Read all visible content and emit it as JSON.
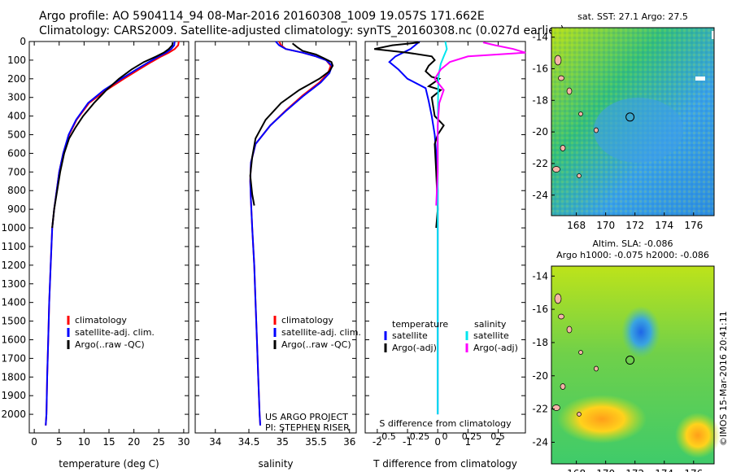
{
  "header": {
    "line1": "Argo profile: AO 5904114_94 08-Mar-2016 20160308_1009 19.057S 171.662E",
    "line2": "Climatology: CARS2009. Satellite-adjusted climatology: synTS_20160308.nc (0.027d earlier)"
  },
  "colors": {
    "climatology": "#ff0000",
    "satellite": "#0000ff",
    "argo": "#000000",
    "sal_sat": "#00e5ee",
    "sal_argo": "#ff00ff"
  },
  "chart_data": [
    {
      "type": "line",
      "id": "temperature",
      "xlabel": "temperature (deg C)",
      "xlim": [
        -1,
        31
      ],
      "ylim": [
        2100,
        0
      ],
      "xticks": [
        "0",
        "5",
        "10",
        "15",
        "20",
        "25",
        "30"
      ],
      "yticks": [
        "0",
        "100",
        "200",
        "300",
        "400",
        "500",
        "600",
        "700",
        "800",
        "900",
        "1000",
        "1100",
        "1200",
        "1300",
        "1400",
        "1500",
        "1600",
        "1700",
        "1800",
        "1900",
        "2000"
      ],
      "legend": [
        "climatology",
        "satellite-adj. clim.",
        "Argo(..raw -QC)"
      ],
      "series": [
        {
          "name": "climatology",
          "x": [
            29.0,
            28.9,
            28.2,
            27.0,
            25.5,
            23.5,
            21.0,
            18.0,
            14.5,
            11.0,
            8.5,
            7.0,
            5.8,
            5.0,
            4.5,
            4.0,
            3.6,
            3.3,
            3.0,
            2.8,
            2.6,
            2.45,
            2.3
          ],
          "y": [
            0,
            20,
            40,
            60,
            80,
            110,
            150,
            200,
            260,
            330,
            420,
            500,
            600,
            700,
            800,
            900,
            1000,
            1200,
            1400,
            1600,
            1800,
            2000,
            2060
          ]
        },
        {
          "name": "satellite-adj. clim.",
          "x": [
            28.2,
            28.1,
            27.5,
            26.5,
            25.0,
            23.0,
            20.5,
            17.5,
            14.0,
            10.8,
            8.4,
            6.9,
            5.8,
            5.0,
            4.5,
            4.0,
            3.6,
            3.3,
            3.0,
            2.8,
            2.6,
            2.45,
            2.3
          ],
          "y": [
            0,
            20,
            40,
            60,
            80,
            110,
            150,
            200,
            260,
            330,
            420,
            500,
            600,
            700,
            800,
            900,
            1000,
            1200,
            1400,
            1600,
            1800,
            2000,
            2060
          ]
        },
        {
          "name": "Argo(..raw -QC)",
          "x": [
            27.8,
            27.7,
            27.0,
            26.0,
            24.5,
            22.0,
            19.5,
            17.0,
            14.5,
            12.0,
            9.8,
            8.3,
            7.0,
            6.0,
            5.2,
            4.6,
            4.0,
            3.6
          ],
          "y": [
            5,
            20,
            40,
            60,
            80,
            110,
            150,
            200,
            260,
            330,
            400,
            460,
            520,
            600,
            700,
            800,
            900,
            1000
          ]
        }
      ]
    },
    {
      "type": "line",
      "id": "salinity",
      "xlabel": "salinity",
      "xlim": [
        33.7,
        36.1
      ],
      "ylim": [
        2100,
        0
      ],
      "xticks": [
        "34",
        "34.5",
        "35",
        "35.5",
        "36"
      ],
      "legend": [
        "climatology",
        "satellite-adj. clim.",
        "Argo(..raw -QC)"
      ],
      "annotation": [
        "US ARGO PROJECT",
        "PI: STEPHEN RISER"
      ],
      "series": [
        {
          "name": "climatology",
          "x": [
            34.95,
            34.98,
            35.05,
            35.3,
            35.5,
            35.65,
            35.72,
            35.68,
            35.55,
            35.3,
            35.05,
            34.82,
            34.6,
            34.53,
            34.52,
            34.53,
            34.55,
            34.58,
            34.6,
            34.62,
            34.64,
            34.66,
            34.67
          ],
          "y": [
            0,
            20,
            40,
            60,
            80,
            100,
            130,
            170,
            220,
            290,
            370,
            450,
            550,
            650,
            750,
            850,
            1000,
            1200,
            1400,
            1600,
            1800,
            2000,
            2060
          ]
        },
        {
          "name": "satellite-adj. clim.",
          "x": [
            34.9,
            34.95,
            35.05,
            35.3,
            35.5,
            35.65,
            35.74,
            35.7,
            35.57,
            35.32,
            35.06,
            34.82,
            34.6,
            34.53,
            34.52,
            34.53,
            34.55,
            34.58,
            34.6,
            34.62,
            34.64,
            34.66,
            34.67
          ],
          "y": [
            0,
            20,
            40,
            60,
            80,
            100,
            130,
            170,
            220,
            290,
            370,
            450,
            550,
            650,
            750,
            850,
            1000,
            1200,
            1400,
            1600,
            1800,
            2000,
            2060
          ]
        },
        {
          "name": "Argo(..raw -QC)",
          "x": [
            35.15,
            35.22,
            35.3,
            35.5,
            35.62,
            35.73,
            35.75,
            35.7,
            35.55,
            35.25,
            34.98,
            34.75,
            34.6,
            34.55,
            34.52,
            34.55,
            34.58
          ],
          "y": [
            10,
            30,
            50,
            70,
            90,
            110,
            130,
            160,
            200,
            260,
            330,
            420,
            520,
            620,
            720,
            820,
            880
          ]
        }
      ]
    },
    {
      "type": "line",
      "id": "difference",
      "xlabel": "T difference from climatology",
      "xlabel_top": "S difference from climatology",
      "xlim": [
        -2.4,
        2.9
      ],
      "ylim": [
        2100,
        0
      ],
      "xticks": [
        "-2",
        "-1",
        "0",
        "1",
        "2"
      ],
      "xticks_top": [
        "-0.5",
        "-0.25",
        "0",
        "0.25",
        "0.5"
      ],
      "legend_left_title": "temperature",
      "legend_left": [
        "satellite",
        "Argo(-adj)"
      ],
      "legend_right_title": "salinity",
      "legend_right": [
        "satellite",
        "Argo(-adj)"
      ],
      "series": [
        {
          "name": "temperature satellite",
          "x": [
            -0.6,
            -0.9,
            -1.4,
            -1.6,
            -1.3,
            -1.0,
            -0.4,
            -0.3,
            -0.2,
            -0.1,
            -0.05,
            0,
            0,
            0
          ],
          "y": [
            0,
            40,
            80,
            110,
            150,
            200,
            250,
            320,
            400,
            500,
            600,
            800,
            1200,
            2000
          ]
        },
        {
          "name": "temperature Argo(-adj)",
          "x": [
            -0.6,
            -1.5,
            -2.1,
            -1.0,
            -0.2,
            -0.1,
            -0.3,
            -0.4,
            -0.2,
            0.05,
            -0.3,
            0.1,
            -0.2,
            -0.1,
            0.2,
            0,
            -0.1,
            -0.05,
            0,
            -0.05
          ],
          "y": [
            5,
            20,
            40,
            60,
            80,
            100,
            130,
            160,
            190,
            200,
            240,
            260,
            300,
            400,
            450,
            500,
            550,
            700,
            900,
            1000
          ]
        },
        {
          "name": "salinity satellite",
          "x": [
            0.25,
            0.3,
            0.2,
            0.1,
            0.05,
            0.02,
            0.01,
            0,
            0,
            0
          ],
          "y": [
            0,
            40,
            80,
            120,
            160,
            200,
            300,
            500,
            1000,
            2000
          ]
        },
        {
          "name": "salinity Argo(-adj)",
          "x": [
            1.5,
            1.9,
            2.5,
            2.9,
            1.0,
            0.4,
            0.1,
            -0.1,
            0.2,
            0.05,
            0,
            0,
            -0.05
          ],
          "y": [
            5,
            20,
            40,
            60,
            80,
            110,
            150,
            200,
            260,
            330,
            450,
            700,
            880
          ]
        }
      ]
    },
    {
      "type": "heatmap",
      "id": "sst-map",
      "title": "sat. SST: 27.1  Argo: 27.5",
      "xticks": [
        "168",
        "170",
        "172",
        "174",
        "176"
      ],
      "yticks": [
        "-14",
        "-16",
        "-18",
        "-20",
        "-22",
        "-24"
      ],
      "xlim": [
        166.3,
        177.4
      ],
      "ylim": [
        -25.3,
        -13.4
      ]
    },
    {
      "type": "heatmap",
      "id": "sla-map",
      "title": [
        "Altim. SLA: -0.086",
        "Argo h1000: -0.075 h2000: -0.086"
      ],
      "xticks": [
        "168",
        "170",
        "172",
        "174",
        "176"
      ],
      "yticks": [
        "-14",
        "-16",
        "-18",
        "-20",
        "-22",
        "-24"
      ],
      "xlim": [
        166.3,
        177.4
      ],
      "ylim": [
        -25.3,
        -13.4
      ]
    }
  ],
  "footer": {
    "credit": "©IMOS 15-Mar-2016 20:41:11"
  }
}
